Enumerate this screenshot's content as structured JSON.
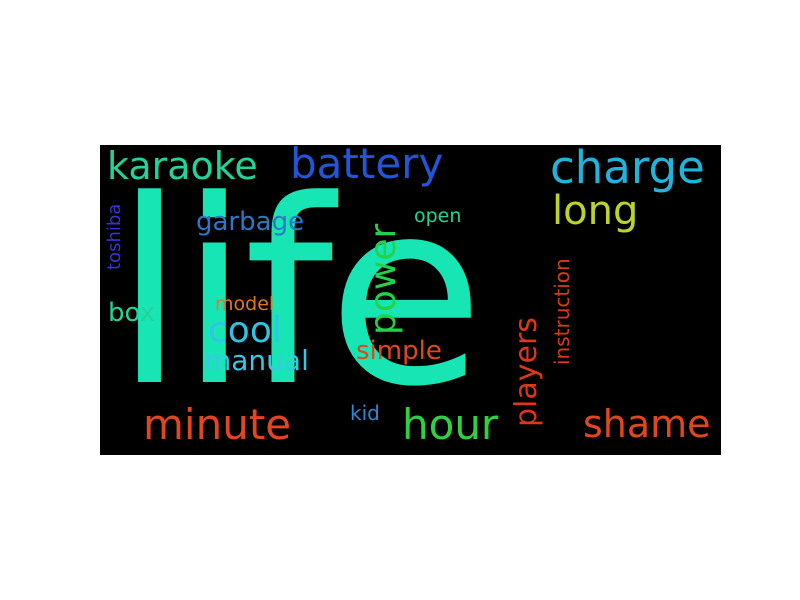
{
  "word_cloud": {
    "background": "#000000",
    "words": [
      {
        "id": "life",
        "text": "life",
        "color": "#17e6b4"
      },
      {
        "id": "karaoke",
        "text": "karaoke",
        "color": "#22d39a"
      },
      {
        "id": "battery",
        "text": "battery",
        "color": "#2255d8"
      },
      {
        "id": "charge",
        "text": "charge",
        "color": "#1fb4dc"
      },
      {
        "id": "long",
        "text": "long",
        "color": "#bcd42a"
      },
      {
        "id": "garbage",
        "text": "garbage",
        "color": "#2b78c6"
      },
      {
        "id": "power",
        "text": "power",
        "color": "#22d34a"
      },
      {
        "id": "open",
        "text": "open",
        "color": "#22d39a"
      },
      {
        "id": "toshiba",
        "text": "toshiba",
        "color": "#3a32d6"
      },
      {
        "id": "instruction",
        "text": "instruction",
        "color": "#d83a1c"
      },
      {
        "id": "box",
        "text": "box",
        "color": "#22d39a"
      },
      {
        "id": "model",
        "text": "model",
        "color": "#e07a22"
      },
      {
        "id": "cool",
        "text": "cool",
        "color": "#2ec4e6"
      },
      {
        "id": "manual",
        "text": "manual",
        "color": "#38c8e4"
      },
      {
        "id": "simple",
        "text": "simple",
        "color": "#e2461e"
      },
      {
        "id": "players",
        "text": "players",
        "color": "#dc3818"
      },
      {
        "id": "minute",
        "text": "minute",
        "color": "#e2461e"
      },
      {
        "id": "hour",
        "text": "hour",
        "color": "#2ed23c"
      },
      {
        "id": "kid",
        "text": "kid",
        "color": "#2b8ad6"
      },
      {
        "id": "shame",
        "text": "shame",
        "color": "#e2461e"
      }
    ]
  }
}
